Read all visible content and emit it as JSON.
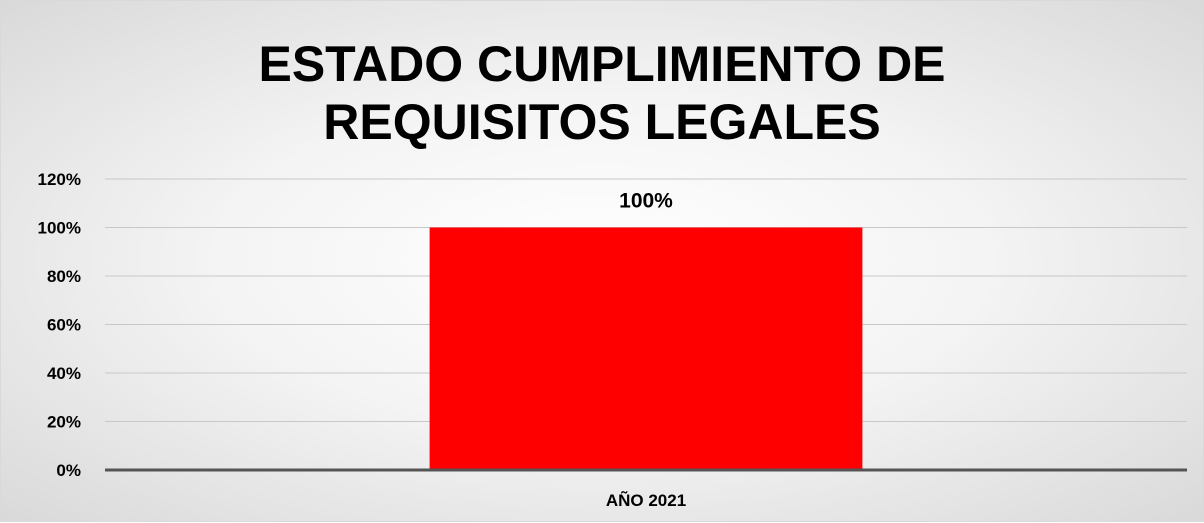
{
  "chart_data": {
    "type": "bar",
    "title_lines": [
      "ESTADO CUMPLIMIENTO DE",
      "REQUISITOS LEGALES"
    ],
    "categories": [
      "AÑO 2021"
    ],
    "values": [
      1.0
    ],
    "data_labels": [
      "100%"
    ],
    "y_ticks": [
      0,
      0.2,
      0.4,
      0.6,
      0.8,
      1.0,
      1.2
    ],
    "y_tick_labels": [
      "0%",
      "20%",
      "40%",
      "60%",
      "80%",
      "100%",
      "120%"
    ],
    "ylim": [
      0,
      1.2
    ],
    "xlabel": "",
    "ylabel": "",
    "grid": true,
    "legend": "none",
    "bar_color": "#ff0000",
    "gridline_color": "#c8c8c8",
    "axis_color": "#555555"
  }
}
